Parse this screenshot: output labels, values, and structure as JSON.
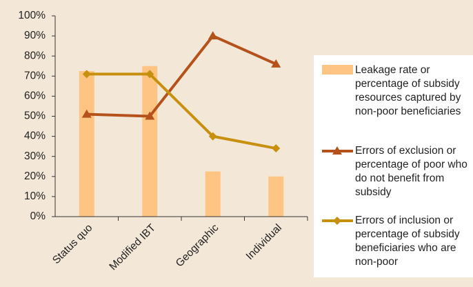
{
  "chart_data": {
    "type": "bar_line",
    "categories": [
      "Status quo",
      "Modified IBT",
      "Geographic",
      "Individual"
    ],
    "series": [
      {
        "name": "Leakage rate or percentage of subsidy resources captured by non-poor beneficiaries",
        "type": "bar",
        "color": "#fdc483",
        "values": [
          72.5,
          75,
          22.5,
          20
        ]
      },
      {
        "name": "Errors of exclusion or percentage of poor who do not benefit from subsidy",
        "type": "line",
        "marker": "triangle",
        "color": "#b5521b",
        "values": [
          51,
          50,
          90,
          76
        ]
      },
      {
        "name": "Errors of inclusion or percentage of subsidy beneficiaries who are non-poor",
        "type": "line",
        "marker": "diamond",
        "color": "#c8900f",
        "values": [
          71,
          71,
          40,
          34
        ]
      }
    ],
    "ylim": [
      0,
      100
    ],
    "yticks": [
      {
        "value": 0,
        "label": "0%"
      },
      {
        "value": 10,
        "label": "10%"
      },
      {
        "value": 20,
        "label": "20%"
      },
      {
        "value": 30,
        "label": "30%"
      },
      {
        "value": 40,
        "label": "40%"
      },
      {
        "value": 50,
        "label": "50%"
      },
      {
        "value": 60,
        "label": "60%"
      },
      {
        "value": 70,
        "label": "70%"
      },
      {
        "value": 80,
        "label": "80%"
      },
      {
        "value": 90,
        "label": "90%"
      },
      {
        "value": 100,
        "label": "100%"
      }
    ]
  }
}
